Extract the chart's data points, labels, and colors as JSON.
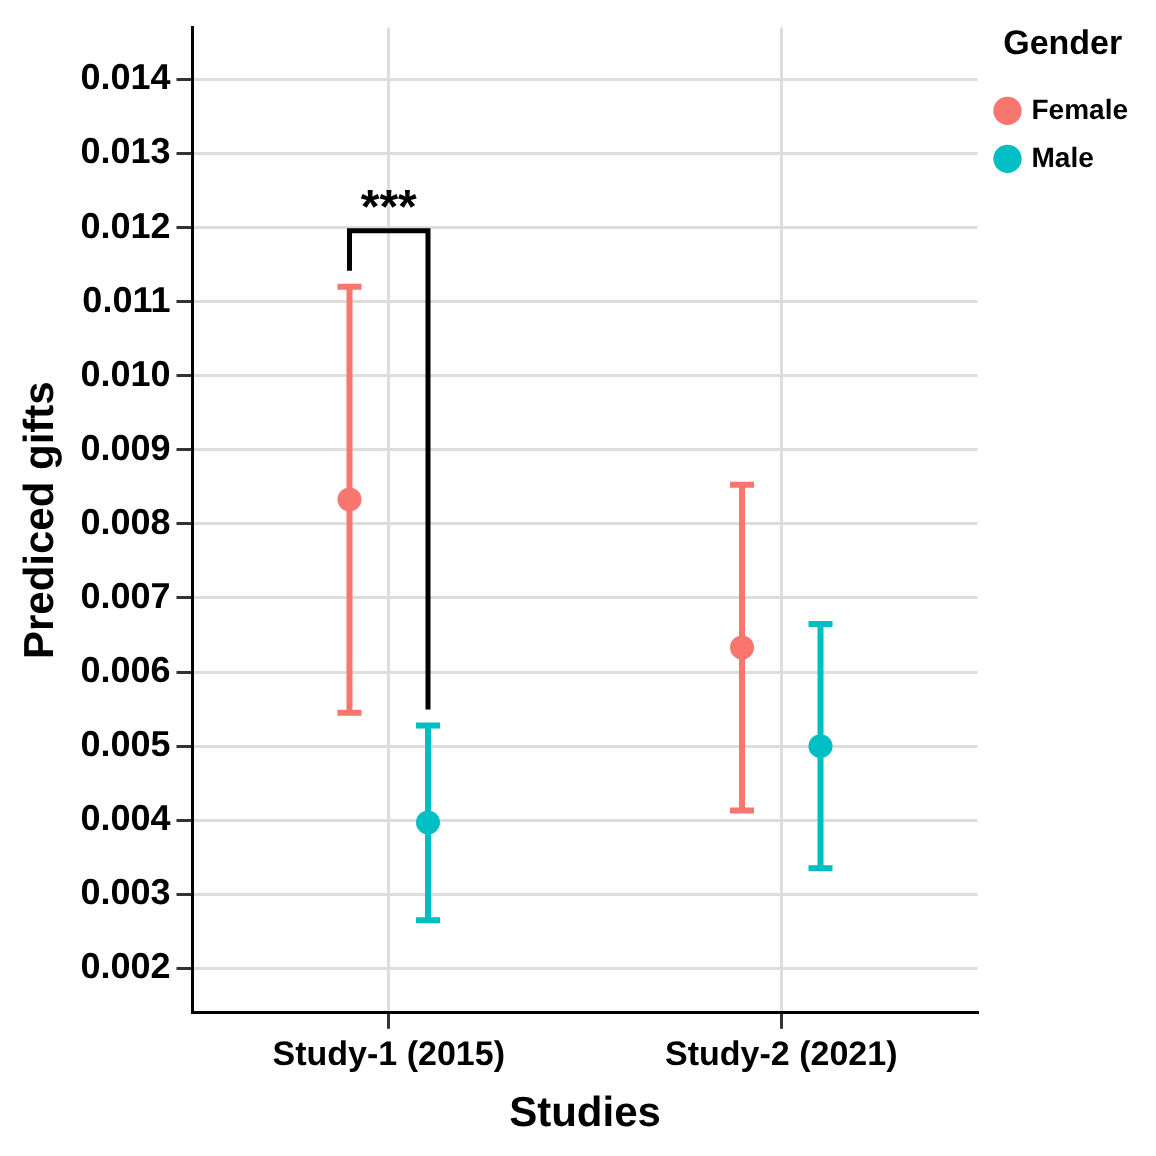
{
  "chart_data": {
    "type": "scatter",
    "xlabel": "Studies",
    "ylabel": "Prediced gifts",
    "legend_title": "Gender",
    "categories": [
      "Study-1 (2015)",
      "Study-2 (2021)"
    ],
    "series": [
      {
        "name": "Female",
        "color": "#f8766d",
        "values": [
          0.00833,
          0.00633
        ],
        "errors": [
          [
            0.00545,
            0.0112
          ],
          [
            0.00413,
            0.00853
          ]
        ]
      },
      {
        "name": "Male",
        "color": "#00bfc4",
        "values": [
          0.00397,
          0.005
        ],
        "errors": [
          [
            0.00265,
            0.00528
          ],
          [
            0.00335,
            0.00665
          ]
        ]
      }
    ],
    "ylim": [
      0.0014,
      0.0147
    ],
    "yticks": [
      0.002,
      0.003,
      0.004,
      0.005,
      0.006,
      0.007,
      0.008,
      0.009,
      {
        "value": 0.01,
        "label": "0.010"
      },
      0.011,
      0.012,
      0.013,
      0.014
    ],
    "annotations": [
      "***"
    ],
    "grid": true,
    "legend": "top right",
    "marker": "circle"
  }
}
